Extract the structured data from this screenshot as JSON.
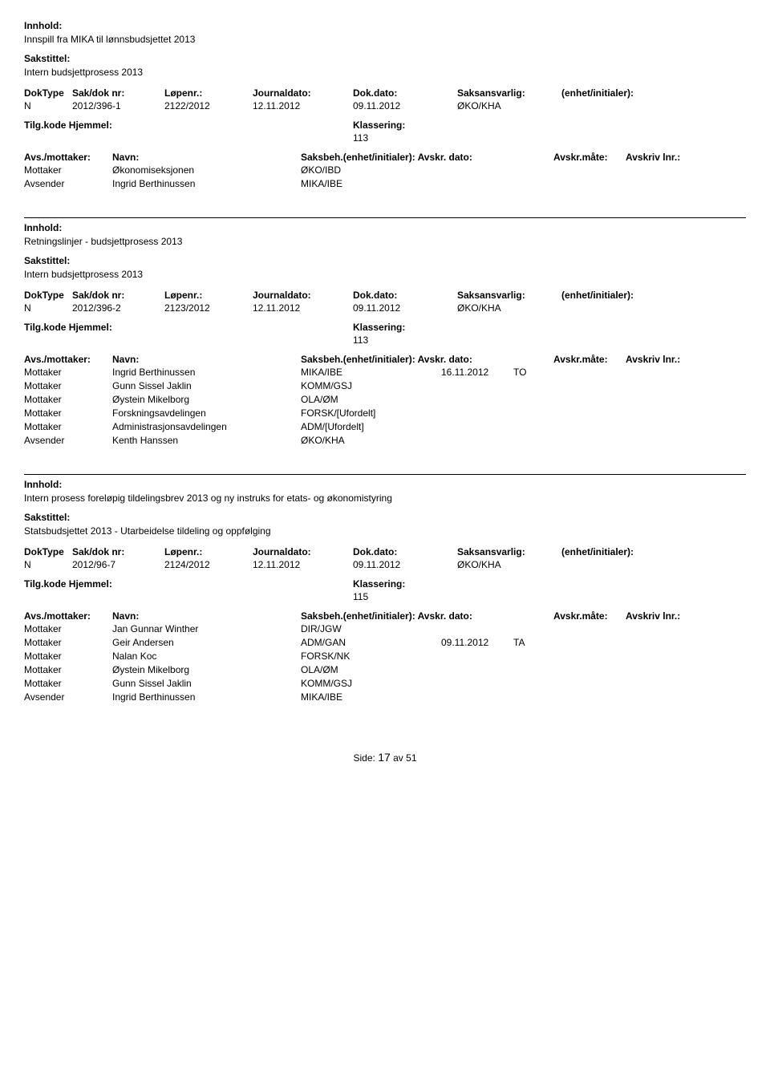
{
  "labels": {
    "innhold": "Innhold:",
    "sakstittel": "Sakstittel:",
    "doktype": "DokType",
    "saknr": "Sak/dok nr:",
    "lopenr": "Løpenr.:",
    "journaldato": "Journaldato:",
    "dokdato": "Dok.dato:",
    "saksansvarlig": "Saksansvarlig:",
    "enhet": "(enhet/initialer):",
    "tilgkode": "Tilg.kode",
    "hjemmel": "Hjemmel:",
    "klassering": "Klassering:",
    "avsmottaker": "Avs./mottaker:",
    "navn": "Navn:",
    "saksbeh": "Saksbeh.(enhet/initialer): Avskr. dato:",
    "avskrmate": "Avskr.måte:",
    "avskrivlnr": "Avskriv lnr.:",
    "side": "Side:",
    "av": "av"
  },
  "footer": {
    "page": "17",
    "total": "51"
  },
  "records": [
    {
      "innhold": "Innspill fra MIKA til lønnsbudsjettet 2013",
      "sakstittel": "Intern budsjettprosess 2013",
      "doktype": "N",
      "saknr": "2012/396-1",
      "lopenr": "2122/2012",
      "journaldato": "12.11.2012",
      "dokdato": "09.11.2012",
      "saksansvarlig": "ØKO/KHA",
      "klassering": "113",
      "parties": [
        {
          "role": "Mottaker",
          "name": "Økonomiseksjonen",
          "unit": "ØKO/IBD",
          "date": "",
          "mate": ""
        },
        {
          "role": "Avsender",
          "name": "Ingrid Berthinussen",
          "unit": "MIKA/IBE",
          "date": "",
          "mate": ""
        }
      ]
    },
    {
      "innhold": "Retningslinjer  - budsjettprosess 2013",
      "sakstittel": "Intern budsjettprosess 2013",
      "doktype": "N",
      "saknr": "2012/396-2",
      "lopenr": "2123/2012",
      "journaldato": "12.11.2012",
      "dokdato": "09.11.2012",
      "saksansvarlig": "ØKO/KHA",
      "klassering": "113",
      "parties": [
        {
          "role": "Mottaker",
          "name": "Ingrid Berthinussen",
          "unit": "MIKA/IBE",
          "date": "16.11.2012",
          "mate": "TO"
        },
        {
          "role": "Mottaker",
          "name": "Gunn Sissel Jaklin",
          "unit": "KOMM/GSJ",
          "date": "",
          "mate": ""
        },
        {
          "role": "Mottaker",
          "name": "Øystein Mikelborg",
          "unit": "OLA/ØM",
          "date": "",
          "mate": ""
        },
        {
          "role": "Mottaker",
          "name": "Forskningsavdelingen",
          "unit": "FORSK/[Ufordelt]",
          "date": "",
          "mate": ""
        },
        {
          "role": "Mottaker",
          "name": "Administrasjonsavdelingen",
          "unit": "ADM/[Ufordelt]",
          "date": "",
          "mate": ""
        },
        {
          "role": "Avsender",
          "name": "Kenth Hanssen",
          "unit": "ØKO/KHA",
          "date": "",
          "mate": ""
        }
      ]
    },
    {
      "innhold": "Intern prosess foreløpig tildelingsbrev 2013 og ny instruks for etats- og økonomistyring",
      "sakstittel": "Statsbudsjettet 2013 - Utarbeidelse tildeling og oppfølging",
      "doktype": "N",
      "saknr": "2012/96-7",
      "lopenr": "2124/2012",
      "journaldato": "12.11.2012",
      "dokdato": "09.11.2012",
      "saksansvarlig": "ØKO/KHA",
      "klassering": "115",
      "parties": [
        {
          "role": "Mottaker",
          "name": "Jan Gunnar Winther",
          "unit": "DIR/JGW",
          "date": "",
          "mate": ""
        },
        {
          "role": "Mottaker",
          "name": "Geir Andersen",
          "unit": "ADM/GAN",
          "date": "09.11.2012",
          "mate": "TA"
        },
        {
          "role": "Mottaker",
          "name": "Nalan Koc",
          "unit": "FORSK/NK",
          "date": "",
          "mate": ""
        },
        {
          "role": "Mottaker",
          "name": "Øystein Mikelborg",
          "unit": "OLA/ØM",
          "date": "",
          "mate": ""
        },
        {
          "role": "Mottaker",
          "name": "Gunn Sissel Jaklin",
          "unit": "KOMM/GSJ",
          "date": "",
          "mate": ""
        },
        {
          "role": "Avsender",
          "name": "Ingrid Berthinussen",
          "unit": "MIKA/IBE",
          "date": "",
          "mate": ""
        }
      ]
    }
  ]
}
